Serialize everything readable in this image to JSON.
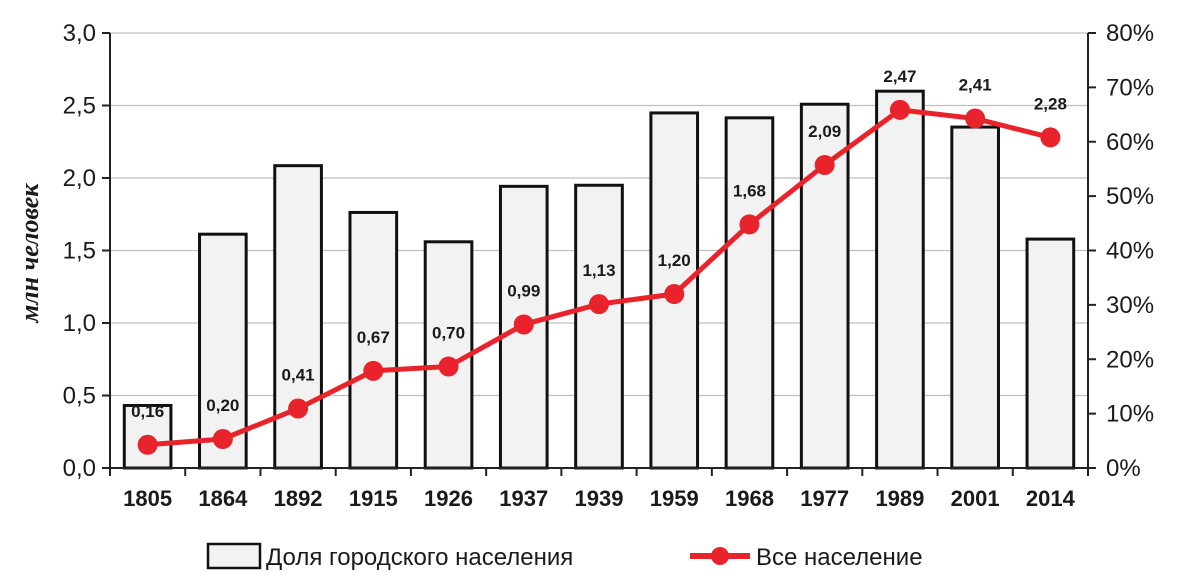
{
  "chart_data": {
    "type": "bar+line",
    "categories": [
      "1805",
      "1864",
      "1892",
      "1915",
      "1926",
      "1937",
      "1939",
      "1959",
      "1968",
      "1977",
      "1989",
      "2001",
      "2014"
    ],
    "ylabel": "млн человек",
    "ylim": [
      0,
      3.0
    ],
    "y_ticks": [
      "0,0",
      "0,5",
      "1,0",
      "1,5",
      "2,0",
      "2,5",
      "3,0"
    ],
    "y2lim": [
      0,
      80
    ],
    "y2_ticks": [
      "0%",
      "10%",
      "20%",
      "30%",
      "40%",
      "50%",
      "60%",
      "70%",
      "80%"
    ],
    "grid": "horizontal",
    "legend_position": "bottom",
    "series": [
      {
        "name": "Доля городского населения",
        "type": "bar",
        "axis": "right",
        "unit": "%",
        "values": [
          11.5,
          43,
          55.6,
          47,
          41.6,
          51.8,
          52,
          65.3,
          64.4,
          66.9,
          69.3,
          62.7,
          42.1
        ],
        "color": "#f2f2f2",
        "stroke": "#111111"
      },
      {
        "name": "Все население",
        "type": "line",
        "axis": "left",
        "values": [
          0.16,
          0.2,
          0.41,
          0.67,
          0.7,
          0.99,
          1.13,
          1.2,
          1.68,
          2.09,
          2.47,
          2.41,
          2.28
        ],
        "labels": [
          "0,16",
          "0,20",
          "0,41",
          "0,67",
          "0,70",
          "0,99",
          "1,13",
          "1,20",
          "1,68",
          "2,09",
          "2,47",
          "2,41",
          "2,28"
        ],
        "color": "#e8232b"
      }
    ]
  }
}
